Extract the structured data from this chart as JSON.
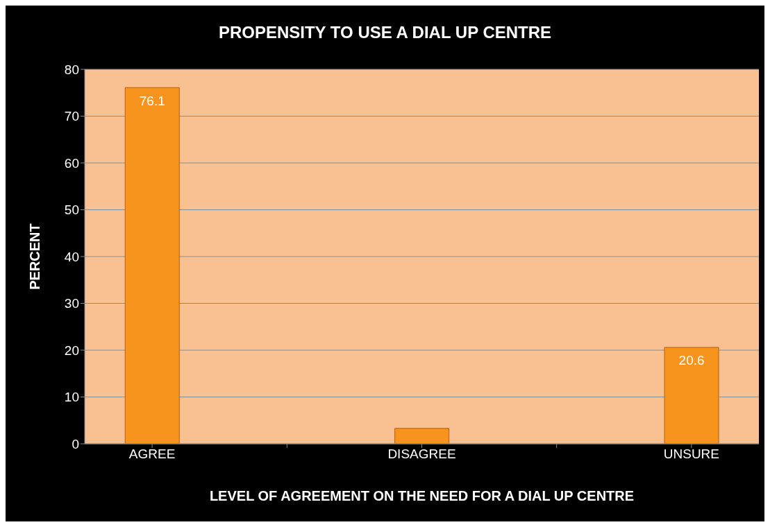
{
  "chart_data": {
    "type": "bar",
    "title": "PROPENSITY TO USE A DIAL UP CENTRE",
    "xlabel": "LEVEL OF AGREEMENT ON THE NEED FOR A DIAL UP CENTRE",
    "ylabel": "PERCENT",
    "categories": [
      "AGREE",
      null,
      "DISAGREE",
      null,
      "UNSURE"
    ],
    "values": [
      76.1,
      null,
      3.3,
      null,
      20.6
    ],
    "value_labels": [
      "76.1",
      null,
      null,
      null,
      "20.6"
    ],
    "color": "#f7941d",
    "ylim": [
      0,
      80
    ],
    "yticks": [
      0,
      10,
      20,
      30,
      40,
      50,
      60,
      70,
      80
    ],
    "grid": "y"
  }
}
